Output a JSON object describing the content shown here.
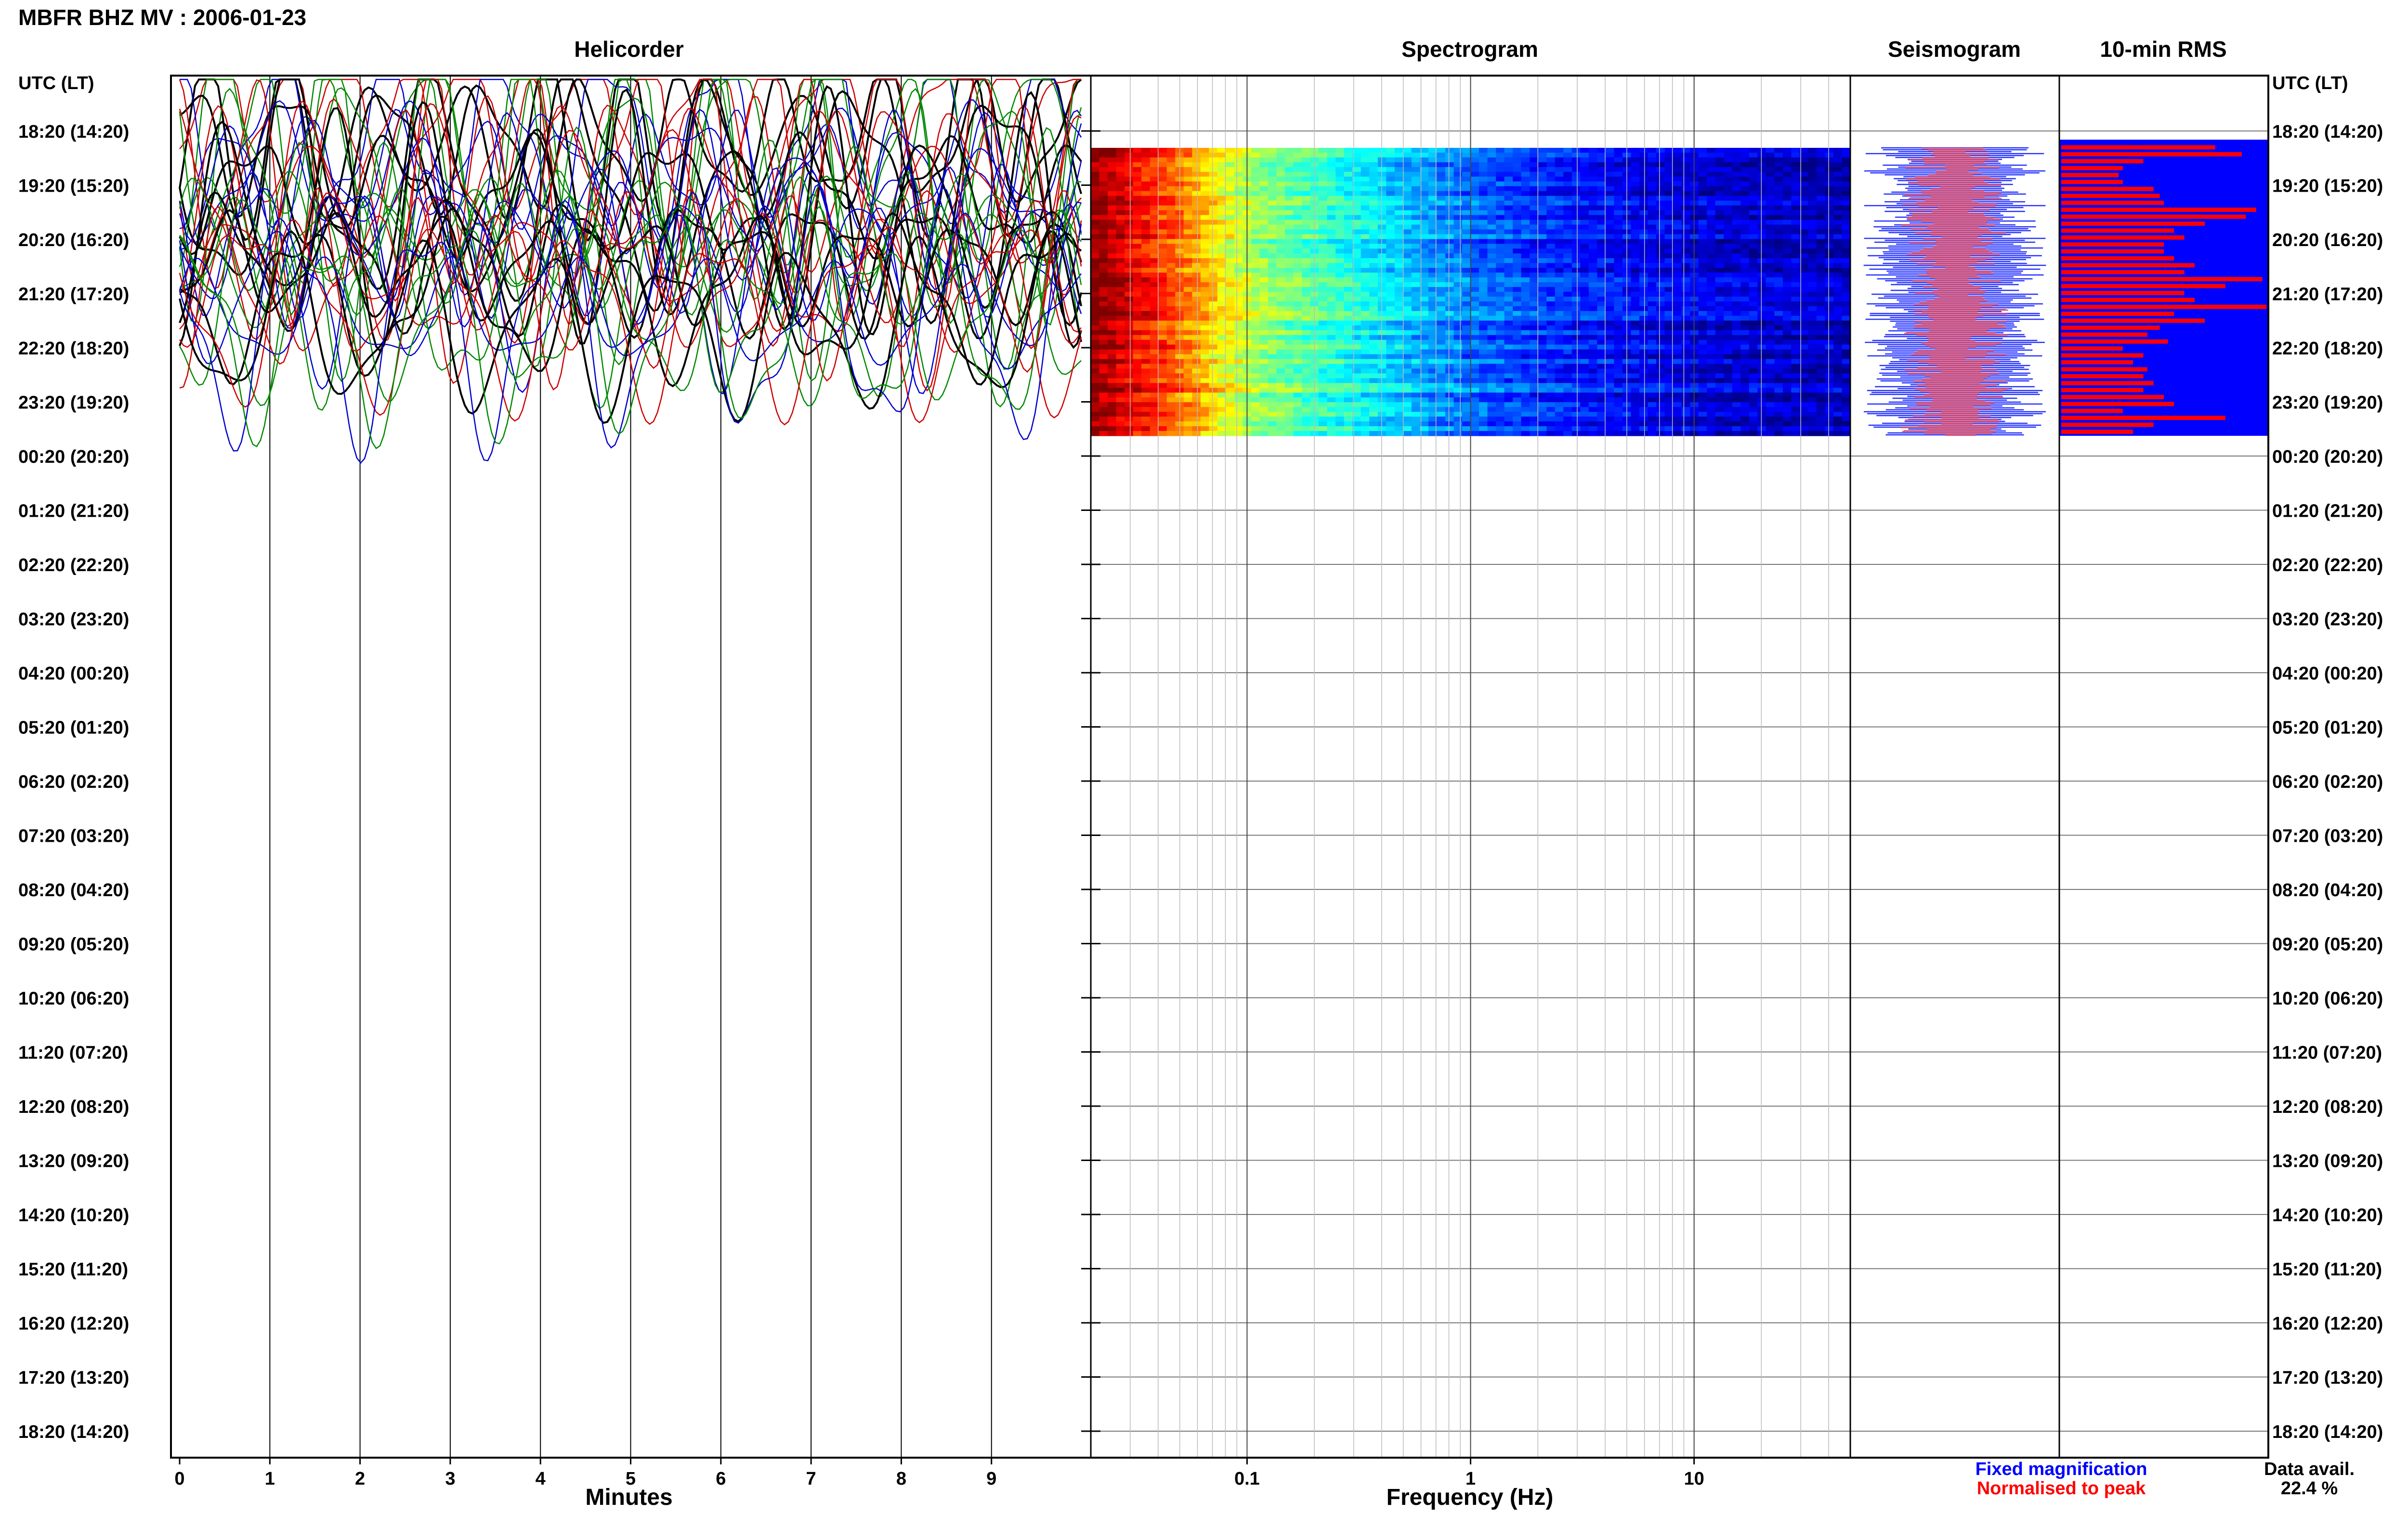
{
  "title": "MBFR BHZ MV : 2006-01-23",
  "panels": {
    "helicorder": "Helicorder",
    "spectrogram": "Spectrogram",
    "seismogram": "Seismogram",
    "rms": "10-min RMS"
  },
  "utc_header": "UTC (LT)",
  "time_rows": [
    "18:20 (14:20)",
    "19:20 (15:20)",
    "20:20 (16:20)",
    "21:20 (17:20)",
    "22:20 (18:20)",
    "23:20 (19:20)",
    "00:20 (20:20)",
    "01:20 (21:20)",
    "02:20 (22:20)",
    "03:20 (23:20)",
    "04:20 (00:20)",
    "05:20 (01:20)",
    "06:20 (02:20)",
    "07:20 (03:20)",
    "08:20 (04:20)",
    "09:20 (05:20)",
    "10:20 (06:20)",
    "11:20 (07:20)",
    "12:20 (08:20)",
    "13:20 (09:20)",
    "14:20 (10:20)",
    "15:20 (11:20)",
    "16:20 (12:20)",
    "17:20 (13:20)",
    "18:20 (14:20)"
  ],
  "xaxis": {
    "minutes_label": "Minutes",
    "minute_ticks": [
      "0",
      "1",
      "2",
      "3",
      "4",
      "5",
      "6",
      "7",
      "8",
      "9"
    ],
    "frequency_label": "Frequency (Hz)",
    "frequency_ticks": [
      "0.1",
      "1",
      "10"
    ]
  },
  "legend": {
    "fixed": "Fixed magnification",
    "normalised": "Normalised to peak",
    "fixed_color": "#0000ff",
    "normalised_color": "#ff0000"
  },
  "data_avail": {
    "label": "Data avail.",
    "value": "22.4 %"
  },
  "chart_data": [
    {
      "type": "line",
      "panel": "Helicorder",
      "xlabel": "Minutes",
      "xlim": [
        0,
        10
      ],
      "line_colors": [
        "#000000",
        "#cc0000",
        "#0000cc",
        "#008800"
      ],
      "rows_with_data": [
        "18:20",
        "19:20",
        "20:20",
        "21:20",
        "22:20",
        "23:20"
      ]
    },
    {
      "type": "heatmap",
      "panel": "Spectrogram",
      "xlabel": "Frequency (Hz)",
      "xscale": "log",
      "xlim": [
        0.02,
        50
      ],
      "rows_with_data": [
        "18:20",
        "19:20",
        "20:20",
        "21:20",
        "22:20",
        "23:20"
      ],
      "colormap": "jet",
      "profile": [
        {
          "freq": 0.02,
          "level": 1.0
        },
        {
          "freq": 0.03,
          "level": 0.9
        },
        {
          "freq": 0.05,
          "level": 0.78
        },
        {
          "freq": 0.08,
          "level": 0.62
        },
        {
          "freq": 0.12,
          "level": 0.52
        },
        {
          "freq": 0.2,
          "level": 0.45
        },
        {
          "freq": 0.35,
          "level": 0.38
        },
        {
          "freq": 0.6,
          "level": 0.3
        },
        {
          "freq": 1,
          "level": 0.24
        },
        {
          "freq": 2,
          "level": 0.18
        },
        {
          "freq": 5,
          "level": 0.13
        },
        {
          "freq": 10,
          "level": 0.1
        },
        {
          "freq": 50,
          "level": 0.07
        }
      ]
    },
    {
      "type": "area",
      "panel": "Seismogram",
      "series": [
        {
          "name": "Fixed magnification",
          "color": "#0000ff"
        },
        {
          "name": "Normalised to peak",
          "color": "#ff0000"
        }
      ]
    },
    {
      "type": "bar",
      "panel": "10-min RMS",
      "orientation": "horizontal",
      "background": "#0000ff",
      "bar_color": "#ff0000",
      "values": [
        0.75,
        0.88,
        0.4,
        0.3,
        0.28,
        0.3,
        0.45,
        0.48,
        0.5,
        0.95,
        0.9,
        0.7,
        0.55,
        0.6,
        0.5,
        0.5,
        0.55,
        0.65,
        0.6,
        0.98,
        0.8,
        0.6,
        0.65,
        1.0,
        0.55,
        0.7,
        0.48,
        0.42,
        0.52,
        0.3,
        0.4,
        0.35,
        0.42,
        0.4,
        0.45,
        0.4,
        0.5,
        0.55,
        0.3,
        0.8,
        0.45,
        0.35
      ]
    }
  ]
}
